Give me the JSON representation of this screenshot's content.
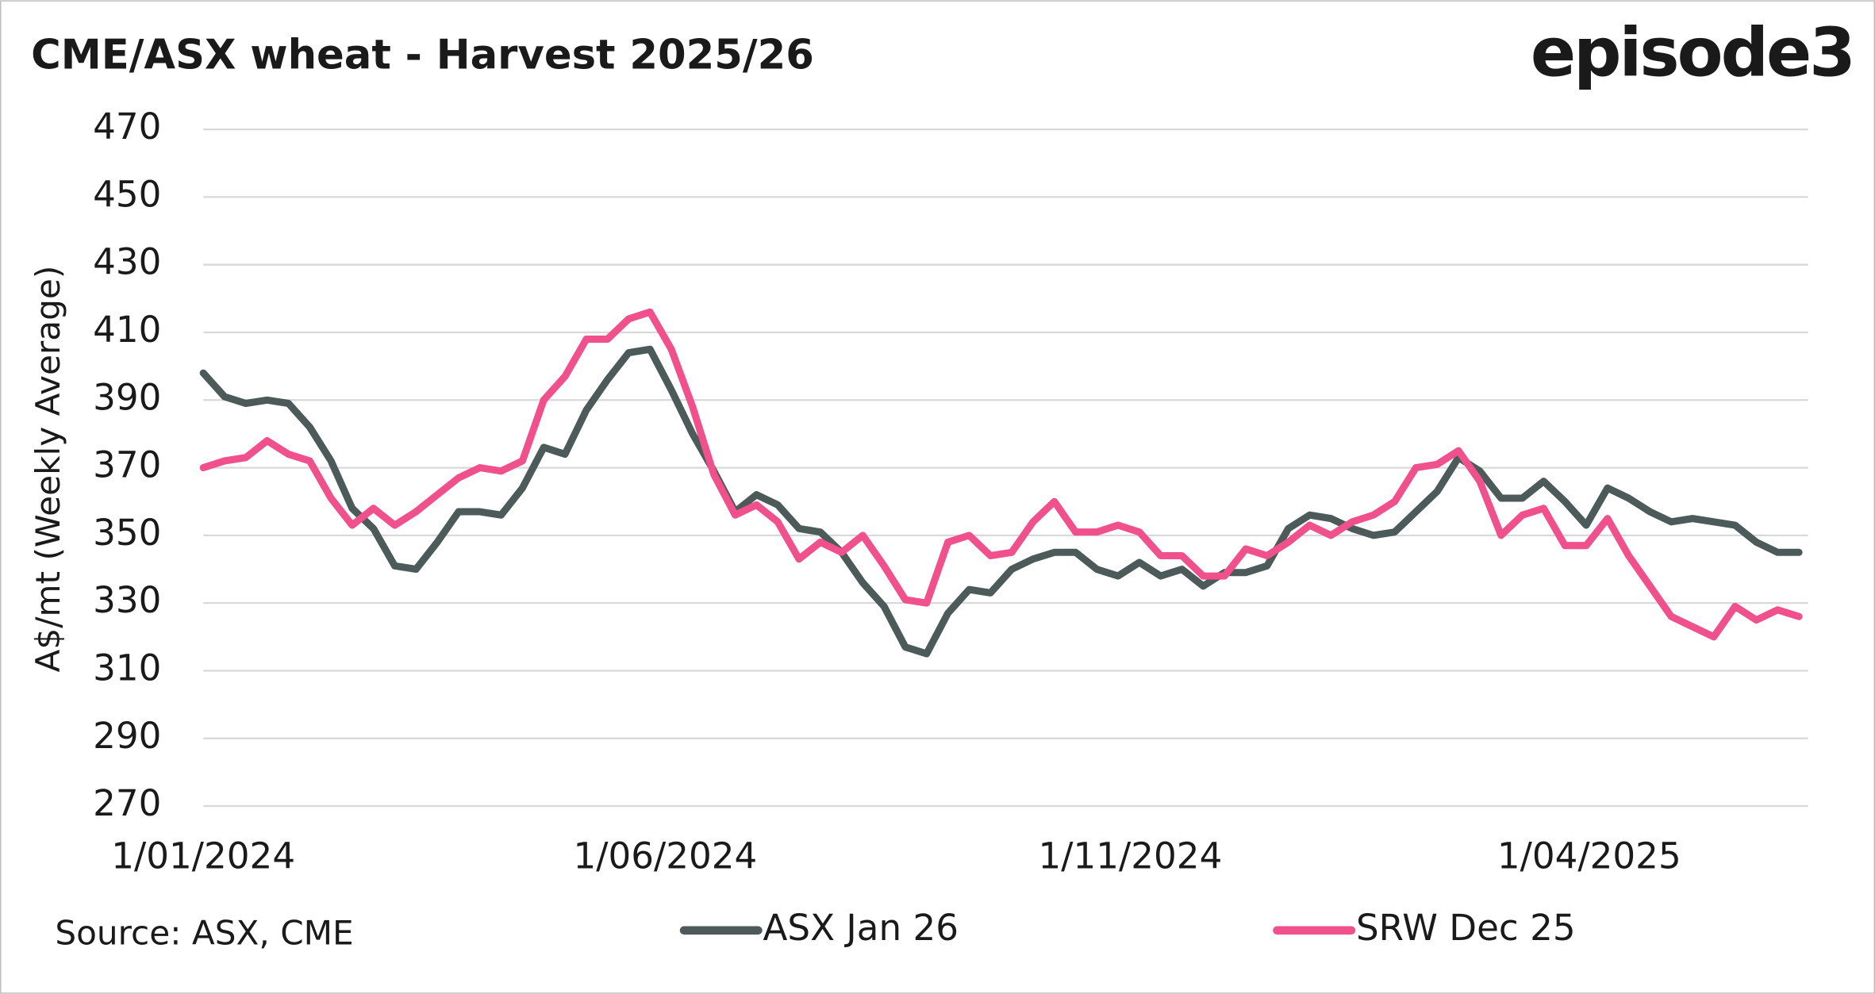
{
  "chart_data": {
    "type": "line",
    "title": "CME/ASX wheat - Harvest 2025/26",
    "brand": "episode3",
    "source": "Source: ASX, CME",
    "y_label": "A$/mt (Weekly Average)",
    "x": [
      "1/01/2024",
      "8/01/2024",
      "15/01/2024",
      "22/01/2024",
      "29/01/2024",
      "5/02/2024",
      "12/02/2024",
      "19/02/2024",
      "26/02/2024",
      "4/03/2024",
      "11/03/2024",
      "18/03/2024",
      "25/03/2024",
      "1/04/2024",
      "8/04/2024",
      "15/04/2024",
      "22/04/2024",
      "29/04/2024",
      "6/05/2024",
      "13/05/2024",
      "20/05/2024",
      "27/05/2024",
      "3/06/2024",
      "10/06/2024",
      "17/06/2024",
      "24/06/2024",
      "1/07/2024",
      "8/07/2024",
      "15/07/2024",
      "22/07/2024",
      "29/07/2024",
      "5/08/2024",
      "12/08/2024",
      "19/08/2024",
      "26/08/2024",
      "2/09/2024",
      "9/09/2024",
      "16/09/2024",
      "23/09/2024",
      "30/09/2024",
      "7/10/2024",
      "14/10/2024",
      "21/10/2024",
      "28/10/2024",
      "4/11/2024",
      "11/11/2024",
      "18/11/2024",
      "25/11/2024",
      "2/12/2024",
      "9/12/2024",
      "16/12/2024",
      "23/12/2024",
      "30/12/2024",
      "6/01/2025",
      "13/01/2025",
      "20/01/2025",
      "27/01/2025",
      "3/02/2025",
      "10/02/2025",
      "17/02/2025",
      "24/02/2025",
      "3/03/2025",
      "10/03/2025",
      "17/03/2025",
      "24/03/2025",
      "31/03/2025",
      "7/04/2025",
      "14/04/2025",
      "21/04/2025",
      "28/04/2025",
      "5/05/2025",
      "12/05/2025",
      "19/05/2025",
      "26/05/2025",
      "2/06/2025",
      "9/06/2025"
    ],
    "series": [
      {
        "name": "ASX Jan 26",
        "color": "#4d5a5a",
        "values": [
          398,
          391,
          389,
          390,
          389,
          382,
          372,
          358,
          352,
          341,
          340,
          348,
          357,
          357,
          356,
          364,
          376,
          374,
          387,
          396,
          404,
          405,
          393,
          380,
          369,
          357,
          362,
          359,
          352,
          351,
          345,
          336,
          329,
          317,
          315,
          327,
          334,
          333,
          340,
          343,
          345,
          345,
          340,
          338,
          342,
          338,
          340,
          335,
          339,
          339,
          341,
          352,
          356,
          355,
          352,
          350,
          351,
          357,
          363,
          373,
          369,
          361,
          361,
          366,
          360,
          353,
          364,
          361,
          357,
          354,
          355,
          354,
          353,
          348,
          345,
          345
        ]
      },
      {
        "name": "SRW Dec 25",
        "color": "#f0508c",
        "values": [
          370,
          372,
          373,
          378,
          374,
          372,
          361,
          353,
          358,
          353,
          357,
          362,
          367,
          370,
          369,
          372,
          390,
          397,
          408,
          408,
          414,
          416,
          405,
          388,
          368,
          356,
          359,
          354,
          343,
          348,
          345,
          350,
          341,
          331,
          330,
          348,
          350,
          344,
          345,
          354,
          360,
          351,
          351,
          353,
          351,
          344,
          344,
          338,
          338,
          346,
          344,
          348,
          353,
          350,
          354,
          356,
          360,
          370,
          371,
          375,
          366,
          350,
          356,
          358,
          347,
          347,
          355,
          344,
          335,
          326,
          323,
          320,
          329,
          325,
          328,
          326
        ]
      }
    ],
    "xlim": [
      "1/01/2024",
      "12/06/2025"
    ],
    "xticks": [
      "1/01/2024",
      "1/06/2024",
      "1/11/2024",
      "1/04/2025"
    ],
    "ylim": [
      270,
      470
    ],
    "yticks": [
      270,
      290,
      310,
      330,
      350,
      370,
      390,
      410,
      430,
      450,
      470
    ],
    "grid": true,
    "legend": "bottom"
  }
}
